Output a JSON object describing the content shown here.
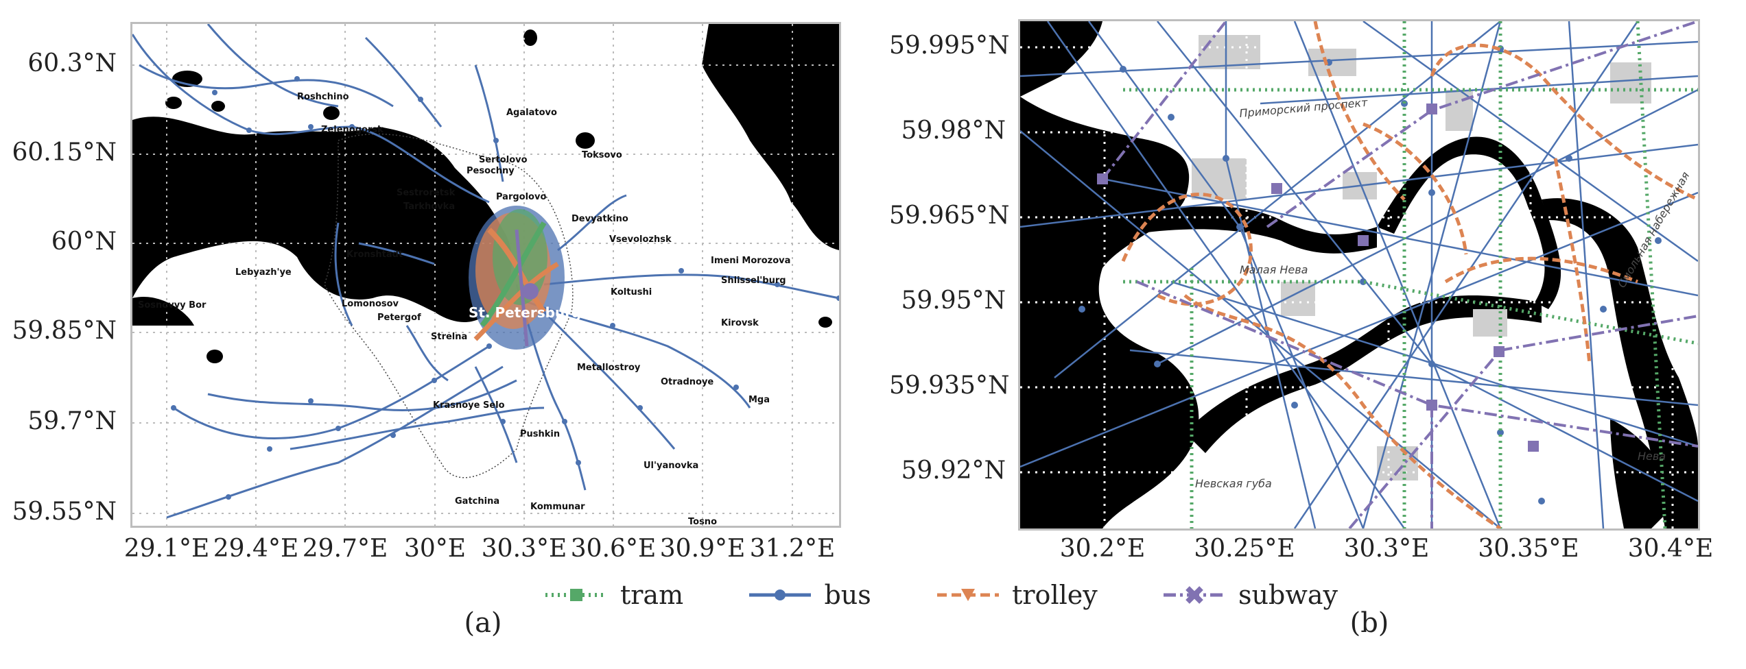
{
  "colors": {
    "tram": "#55a868",
    "bus": "#4c72b0",
    "trolley": "#dd8452",
    "subway": "#8172b2",
    "water": "#000000",
    "grid": "#bbbbbb",
    "frame": "#bdbdbd"
  },
  "panel_a": {
    "caption": "(a)",
    "y_ticks": [
      "60.3°N",
      "60.15°N",
      "60°N",
      "59.85°N",
      "59.7°N",
      "59.55°N"
    ],
    "x_ticks": [
      "29.1°E",
      "29.4°E",
      "29.7°E",
      "30°E",
      "30.3°E",
      "30.6°E",
      "30.9°E",
      "31.2°E"
    ],
    "places": [
      "Roshchino",
      "Zelenogorsk",
      "Agalatovo",
      "Toksovo",
      "Sertolovo",
      "Pesochny",
      "Sestroretsk",
      "Tarkhovka",
      "Pargolovo",
      "Devyatkino",
      "Vsevolozhsk",
      "Kronshtadt",
      "Lebyazh'ye",
      "Imeni Morozova",
      "Shlissel'burg",
      "Koltushi",
      "Sosnovyy Bor",
      "Lomonosov",
      "Petergof",
      "Strelna",
      "St. Petersburg",
      "Kirovsk",
      "Metallostroy",
      "Otradnoye",
      "Krasnoye Selo",
      "Pushkin",
      "Mga",
      "Ul'yanovka",
      "Kommunar",
      "Gatchina",
      "Tosno"
    ]
  },
  "panel_b": {
    "caption": "(b)",
    "y_ticks": [
      "59.995°N",
      "59.98°N",
      "59.965°N",
      "59.95°N",
      "59.935°N",
      "59.92°N"
    ],
    "x_ticks": [
      "30.2°E",
      "30.25°E",
      "30.3°E",
      "30.35°E",
      "30.4°E"
    ],
    "labels": [
      "Малая Нева",
      "Невская губа",
      "Нева",
      "Смольная набережная",
      "Приморский проспект"
    ]
  },
  "legend": [
    {
      "key": "tram",
      "label": "tram",
      "marker": "square",
      "dash": "dotted"
    },
    {
      "key": "bus",
      "label": "bus",
      "marker": "circle",
      "dash": "solid"
    },
    {
      "key": "trolley",
      "label": "trolley",
      "marker": "triangle-down",
      "dash": "dashed"
    },
    {
      "key": "subway",
      "label": "subway",
      "marker": "x-thick",
      "dash": "dashdot"
    }
  ]
}
